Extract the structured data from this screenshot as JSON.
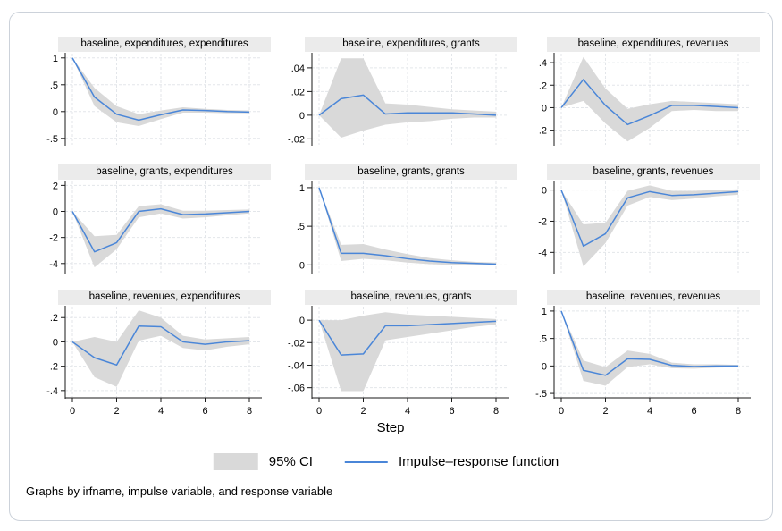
{
  "figure": {
    "xlabel": "Step",
    "note": "Graphs by irfname, impulse variable, and response variable",
    "legend": [
      {
        "swatch": "ci-band",
        "label": "95% CI"
      },
      {
        "swatch": "line",
        "label": "Impulse–response function"
      }
    ],
    "colors": {
      "line": "#4a86d8",
      "ci": "#d9d9d9",
      "grid": "#e3e6ea",
      "title_bg": "#ebebeb",
      "axis": "#1a1a1a",
      "frame_border": "#ccd2da"
    }
  },
  "chart_data": {
    "type": "line",
    "x": [
      0,
      1,
      2,
      3,
      4,
      5,
      6,
      7,
      8
    ],
    "x_ticks": [
      0,
      2,
      4,
      6,
      8
    ],
    "x_tick_labels": [
      "0",
      "2",
      "4",
      "6",
      "8"
    ],
    "xlabel": "Step",
    "series_names": [
      "95% CI",
      "Impulse–response function"
    ],
    "panels": [
      {
        "title": "baseline, expenditures, expenditures",
        "irfname": "baseline",
        "impulse": "expenditures",
        "response": "expenditures",
        "y_tick_values": [
          1,
          0.5,
          0,
          -0.5
        ],
        "y_tick_labels": [
          "1",
          ".5",
          "0",
          "-.5"
        ],
        "ylim": [
          -0.62,
          1.08
        ],
        "irf": [
          1,
          0.27,
          -0.05,
          -0.16,
          -0.06,
          0.03,
          0.02,
          0.0,
          -0.01
        ],
        "ci_lower": [
          1,
          0.1,
          -0.2,
          -0.27,
          -0.14,
          -0.02,
          -0.02,
          -0.03,
          -0.03
        ],
        "ci_upper": [
          1,
          0.44,
          0.1,
          -0.05,
          0.02,
          0.08,
          0.05,
          0.03,
          0.02
        ]
      },
      {
        "title": "baseline, expenditures, grants",
        "irfname": "baseline",
        "impulse": "expenditures",
        "response": "grants",
        "y_tick_values": [
          0.04,
          0.02,
          0,
          -0.02
        ],
        "y_tick_labels": [
          ".04",
          ".02",
          "0",
          "-.02"
        ],
        "ylim": [
          -0.025,
          0.052
        ],
        "irf": [
          0,
          0.014,
          0.017,
          0.001,
          0.002,
          0.002,
          0.002,
          0.001,
          0.0
        ],
        "ci_lower": [
          0,
          -0.019,
          -0.013,
          -0.008,
          -0.006,
          -0.005,
          -0.003,
          -0.002,
          -0.002
        ],
        "ci_upper": [
          0,
          0.048,
          0.048,
          0.01,
          0.009,
          0.007,
          0.005,
          0.004,
          0.003
        ]
      },
      {
        "title": "baseline, expenditures, revenues",
        "irfname": "baseline",
        "impulse": "expenditures",
        "response": "revenues",
        "y_tick_values": [
          0.4,
          0.2,
          0,
          -0.2
        ],
        "y_tick_labels": [
          ".4",
          ".2",
          "0",
          "-.2"
        ],
        "ylim": [
          -0.33,
          0.48
        ],
        "irf": [
          0,
          0.25,
          0.02,
          -0.15,
          -0.07,
          0.02,
          0.02,
          0.01,
          0.0
        ],
        "ci_lower": [
          0,
          0.06,
          -0.14,
          -0.3,
          -0.18,
          -0.03,
          -0.02,
          -0.03,
          -0.03
        ],
        "ci_upper": [
          0,
          0.45,
          0.17,
          -0.01,
          0.03,
          0.06,
          0.05,
          0.04,
          0.03
        ]
      },
      {
        "title": "baseline, grants, expenditures",
        "irfname": "baseline",
        "impulse": "grants",
        "response": "expenditures",
        "y_tick_values": [
          2,
          0,
          -2,
          -4
        ],
        "y_tick_labels": [
          "2",
          "0",
          "-2",
          "-4"
        ],
        "ylim": [
          -4.7,
          2.3
        ],
        "irf": [
          0,
          -3.1,
          -2.4,
          0.0,
          0.2,
          -0.25,
          -0.2,
          -0.1,
          0.0
        ],
        "ci_lower": [
          0,
          -4.3,
          -2.9,
          -0.45,
          -0.15,
          -0.55,
          -0.45,
          -0.3,
          -0.15
        ],
        "ci_upper": [
          0,
          -1.9,
          -1.8,
          0.4,
          0.55,
          0.05,
          0.05,
          0.1,
          0.15
        ]
      },
      {
        "title": "baseline, grants, grants",
        "irfname": "baseline",
        "impulse": "grants",
        "response": "grants",
        "y_tick_values": [
          1,
          0.5,
          0
        ],
        "y_tick_labels": [
          "1",
          ".5",
          "0"
        ],
        "ylim": [
          -0.1,
          1.08
        ],
        "irf": [
          1,
          0.15,
          0.15,
          0.12,
          0.08,
          0.05,
          0.03,
          0.02,
          0.01
        ],
        "ci_lower": [
          1,
          0.05,
          0.08,
          0.06,
          0.03,
          0.01,
          0.0,
          0.0,
          0.0
        ],
        "ci_upper": [
          1,
          0.26,
          0.27,
          0.2,
          0.14,
          0.09,
          0.06,
          0.04,
          0.03
        ]
      },
      {
        "title": "baseline, grants, revenues",
        "irfname": "baseline",
        "impulse": "grants",
        "response": "revenues",
        "y_tick_values": [
          0,
          -2,
          -4
        ],
        "y_tick_labels": [
          "0",
          "-2",
          "-4"
        ],
        "ylim": [
          -5.3,
          0.55
        ],
        "irf": [
          0,
          -3.6,
          -2.8,
          -0.5,
          -0.1,
          -0.35,
          -0.3,
          -0.2,
          -0.1
        ],
        "ci_lower": [
          0,
          -4.9,
          -3.4,
          -1.0,
          -0.45,
          -0.65,
          -0.55,
          -0.4,
          -0.3
        ],
        "ci_upper": [
          0,
          -2.2,
          -2.1,
          -0.05,
          0.3,
          -0.05,
          -0.05,
          0.0,
          0.05
        ]
      },
      {
        "title": "baseline, revenues, expenditures",
        "irfname": "baseline",
        "impulse": "revenues",
        "response": "expenditures",
        "y_tick_values": [
          0.2,
          0,
          -0.2,
          -0.4
        ],
        "y_tick_labels": [
          ".2",
          "0",
          "-.2",
          "-.4"
        ],
        "ylim": [
          -0.46,
          0.29
        ],
        "irf": [
          0,
          -0.13,
          -0.19,
          0.13,
          0.125,
          0.0,
          -0.02,
          0.0,
          0.01
        ],
        "ci_lower": [
          0,
          -0.29,
          -0.37,
          0.01,
          0.05,
          -0.05,
          -0.07,
          -0.04,
          -0.02
        ],
        "ci_upper": [
          0,
          0.04,
          0.0,
          0.26,
          0.2,
          0.05,
          0.02,
          0.03,
          0.04
        ]
      },
      {
        "title": "baseline, revenues, grants",
        "irfname": "baseline",
        "impulse": "revenues",
        "response": "grants",
        "y_tick_values": [
          0,
          -0.02,
          -0.04,
          -0.06
        ],
        "y_tick_labels": [
          "0",
          "-.02",
          "-.04",
          "-.06"
        ],
        "ylim": [
          -0.069,
          0.012
        ],
        "irf": [
          0,
          -0.031,
          -0.03,
          -0.005,
          -0.005,
          -0.004,
          -0.003,
          -0.002,
          -0.001
        ],
        "ci_lower": [
          0,
          -0.063,
          -0.063,
          -0.018,
          -0.015,
          -0.012,
          -0.009,
          -0.006,
          -0.004
        ],
        "ci_upper": [
          0,
          0.0,
          0.004,
          0.007,
          0.005,
          0.004,
          0.003,
          0.002,
          0.001
        ]
      },
      {
        "title": "baseline, revenues, revenues",
        "irfname": "baseline",
        "impulse": "revenues",
        "response": "revenues",
        "y_tick_values": [
          1,
          0.5,
          0,
          -0.5
        ],
        "y_tick_labels": [
          "1",
          ".5",
          "0",
          "-.5"
        ],
        "ylim": [
          -0.58,
          1.08
        ],
        "irf": [
          1,
          -0.08,
          -0.17,
          0.13,
          0.12,
          0.01,
          -0.01,
          0.0,
          0.0
        ],
        "ci_lower": [
          1,
          -0.27,
          -0.36,
          -0.02,
          0.03,
          -0.04,
          -0.05,
          -0.03,
          -0.02
        ],
        "ci_upper": [
          1,
          0.1,
          -0.02,
          0.28,
          0.22,
          0.06,
          0.03,
          0.03,
          0.02
        ]
      }
    ]
  }
}
